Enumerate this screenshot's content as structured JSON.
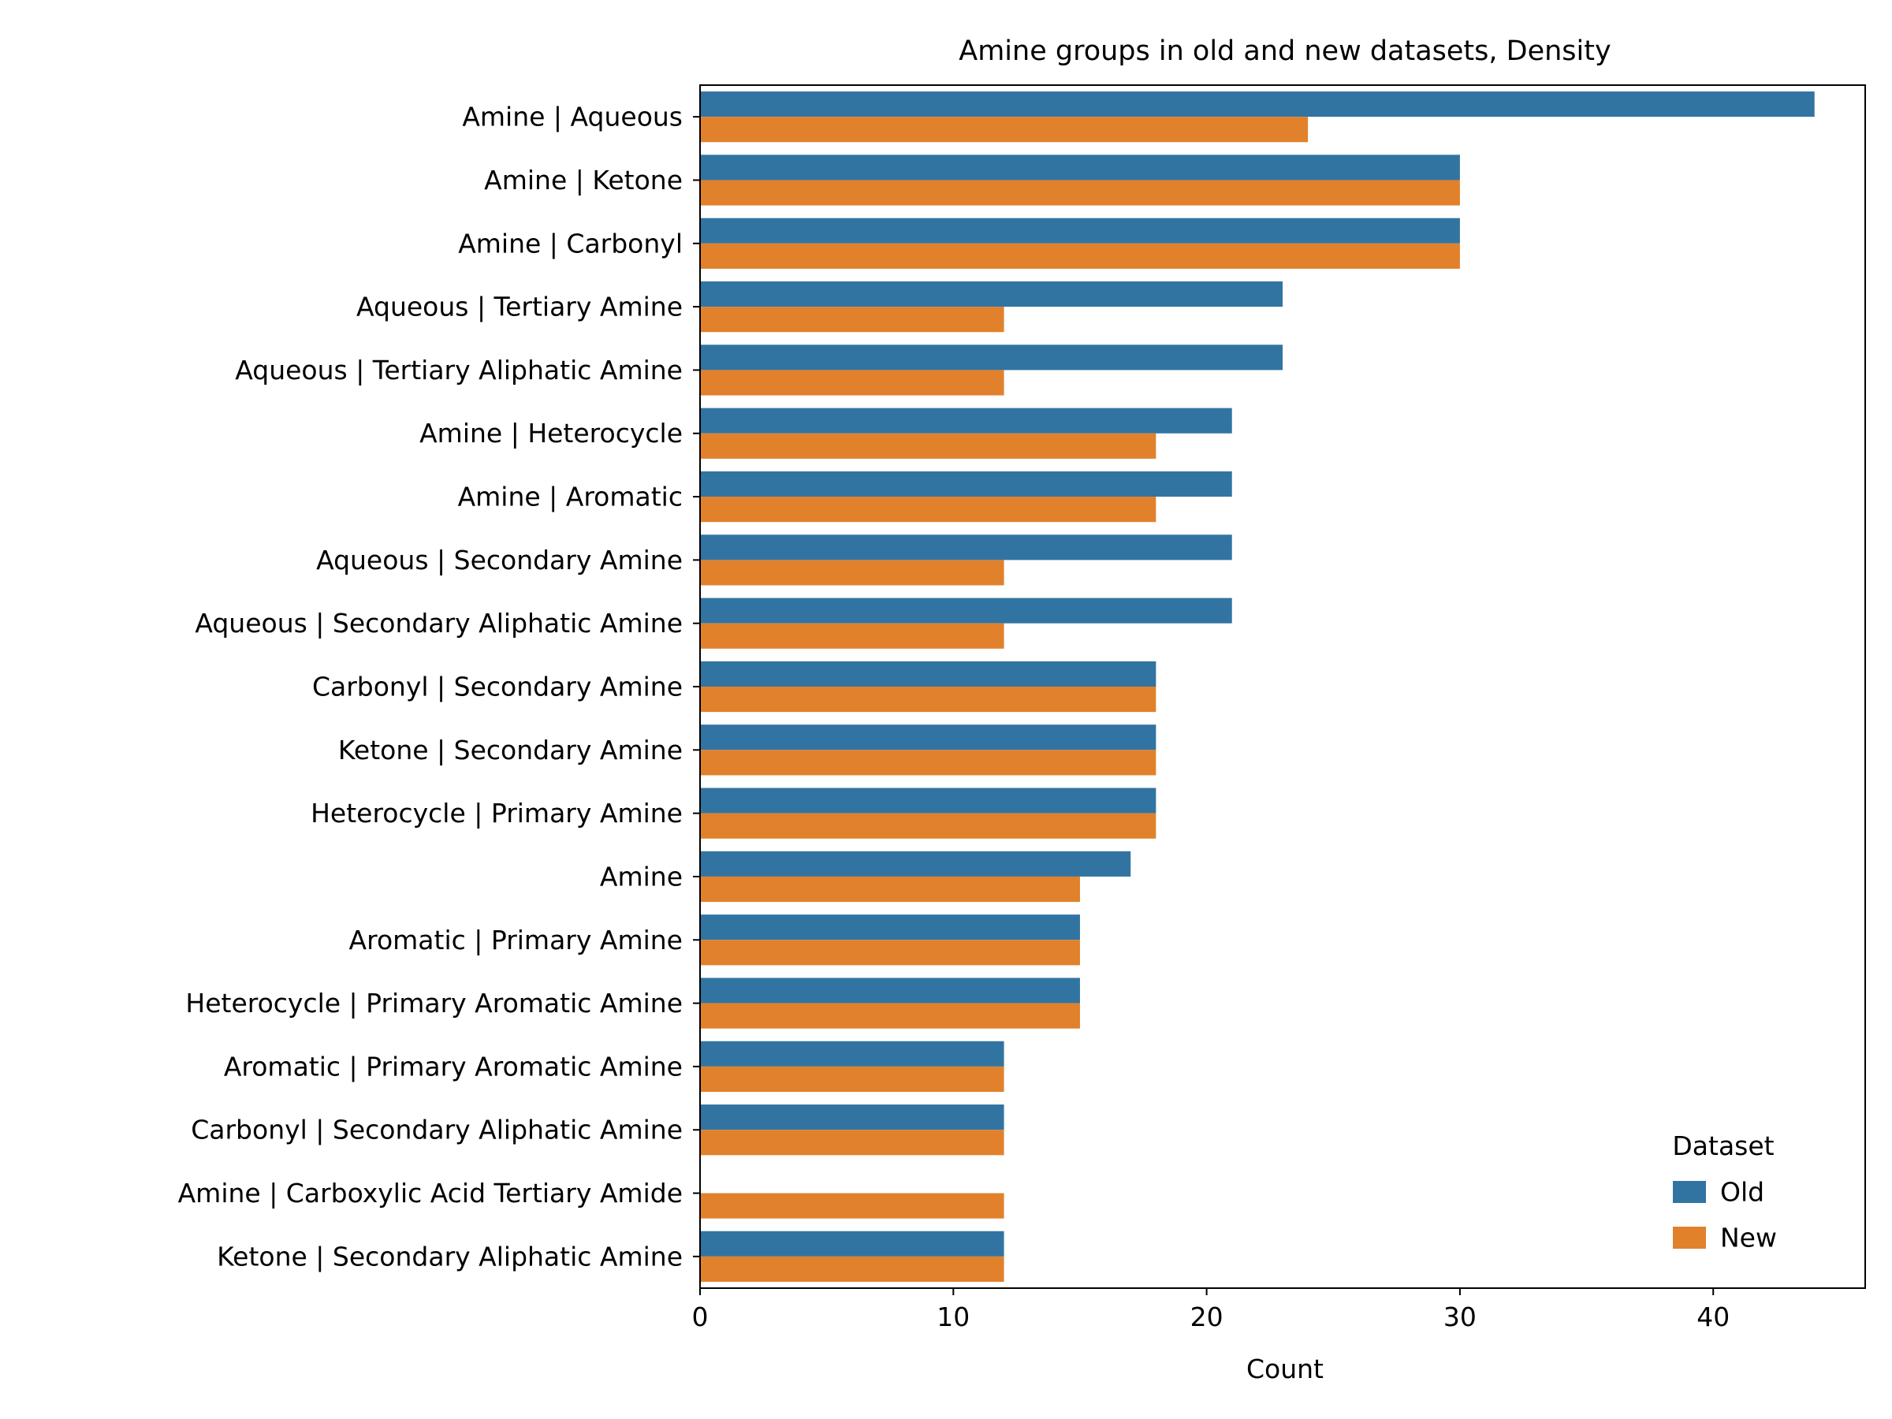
{
  "chart_data": {
    "type": "bar",
    "orientation": "horizontal",
    "title": "Amine groups in old and new datasets, Density",
    "xlabel": "Count",
    "ylabel": "",
    "xlim": [
      0,
      46
    ],
    "xticks": [
      0,
      10,
      20,
      30,
      40
    ],
    "grid": false,
    "legend": {
      "title": "Dataset",
      "placement": "lower-right"
    },
    "categories": [
      "Amine | Aqueous",
      "Amine | Ketone",
      "Amine | Carbonyl",
      "Aqueous | Tertiary Amine",
      "Aqueous | Tertiary Aliphatic Amine",
      "Amine | Heterocycle",
      "Amine | Aromatic",
      "Aqueous | Secondary Amine",
      "Aqueous | Secondary Aliphatic Amine",
      "Carbonyl | Secondary Amine",
      "Ketone | Secondary Amine",
      "Heterocycle | Primary Amine",
      "Amine",
      "Aromatic | Primary Amine",
      "Heterocycle | Primary Aromatic Amine",
      "Aromatic | Primary Aromatic Amine",
      "Carbonyl | Secondary Aliphatic Amine",
      "Amine | Carboxylic Acid Tertiary Amide",
      "Ketone | Secondary Aliphatic Amine"
    ],
    "series": [
      {
        "name": "Old",
        "color": "#3274a1",
        "values": [
          44,
          30,
          30,
          23,
          23,
          21,
          21,
          21,
          21,
          18,
          18,
          18,
          17,
          15,
          15,
          12,
          12,
          0,
          12
        ]
      },
      {
        "name": "New",
        "color": "#e1812c",
        "values": [
          24,
          30,
          30,
          12,
          12,
          18,
          18,
          12,
          12,
          18,
          18,
          18,
          15,
          15,
          15,
          12,
          12,
          12,
          12
        ]
      }
    ]
  }
}
